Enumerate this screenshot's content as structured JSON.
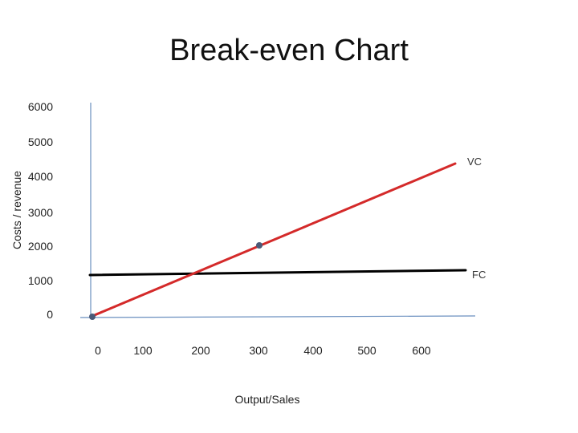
{
  "chart_data": {
    "type": "line",
    "title": "Break-even Chart",
    "xlabel": "Output/Sales",
    "ylabel": "Costs / revenue",
    "x_ticks": [
      "0",
      "100",
      "200",
      "300",
      "400",
      "500",
      "600"
    ],
    "y_ticks": [
      "0",
      "1000",
      "2000",
      "3000",
      "4000",
      "5000",
      "6000"
    ],
    "xlim": [
      0,
      600
    ],
    "ylim": [
      0,
      6000
    ],
    "grid": false,
    "series": [
      {
        "name": "FC",
        "color": "#000000",
        "x": [
          0,
          600
        ],
        "y": [
          1180,
          1320
        ]
      },
      {
        "name": "VC",
        "color": "#d42a2a",
        "x": [
          0,
          600
        ],
        "y": [
          0,
          4440
        ]
      }
    ],
    "points": [
      {
        "x": 0,
        "y": 0,
        "color": "#4a5a78"
      },
      {
        "x": 300,
        "y": 2000,
        "color": "#4a5a78"
      }
    ],
    "axis_color": "#6a8fbf"
  }
}
